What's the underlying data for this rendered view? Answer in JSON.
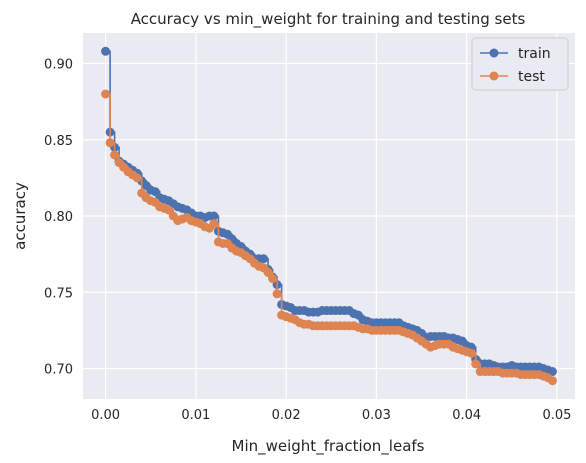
{
  "chart_data": {
    "type": "line",
    "title": "Accuracy vs min_weight for training and testing sets",
    "xlabel": "Min_weight_fraction_leafs",
    "ylabel": "accuracy",
    "xlim": [
      -0.0025,
      0.052
    ],
    "ylim": [
      0.68,
      0.92
    ],
    "x_ticks": [
      0.0,
      0.01,
      0.02,
      0.03,
      0.04,
      0.05
    ],
    "x_tick_labels": [
      "0.00",
      "0.01",
      "0.02",
      "0.03",
      "0.04",
      "0.05"
    ],
    "y_ticks": [
      0.7,
      0.75,
      0.8,
      0.85,
      0.9
    ],
    "y_tick_labels": [
      "0.70",
      "0.75",
      "0.80",
      "0.85",
      "0.90"
    ],
    "grid": true,
    "legend_position": "top-right",
    "style": "steps-post with circle markers",
    "colors": {
      "train": "#4c72b0",
      "test": "#dd8452",
      "background": "#eaeaf2",
      "grid": "#ffffff"
    },
    "x": [
      0.0,
      0.0005,
      0.001,
      0.0015,
      0.002,
      0.0025,
      0.003,
      0.0035,
      0.004,
      0.0045,
      0.005,
      0.0055,
      0.006,
      0.0065,
      0.007,
      0.0075,
      0.008,
      0.0085,
      0.009,
      0.0095,
      0.01,
      0.0105,
      0.011,
      0.0115,
      0.012,
      0.0125,
      0.013,
      0.0135,
      0.014,
      0.0145,
      0.015,
      0.0155,
      0.016,
      0.0165,
      0.017,
      0.0175,
      0.018,
      0.0185,
      0.019,
      0.0195,
      0.02,
      0.0205,
      0.021,
      0.0215,
      0.022,
      0.0225,
      0.023,
      0.0235,
      0.024,
      0.0245,
      0.025,
      0.0255,
      0.026,
      0.0265,
      0.027,
      0.0275,
      0.028,
      0.0285,
      0.029,
      0.0295,
      0.03,
      0.0305,
      0.031,
      0.0315,
      0.032,
      0.0325,
      0.033,
      0.0335,
      0.034,
      0.0345,
      0.035,
      0.0355,
      0.036,
      0.0365,
      0.037,
      0.0375,
      0.038,
      0.0385,
      0.039,
      0.0395,
      0.04,
      0.0405,
      0.041,
      0.0415,
      0.042,
      0.0425,
      0.043,
      0.0435,
      0.044,
      0.0445,
      0.045,
      0.0455,
      0.046,
      0.0465,
      0.047,
      0.0475,
      0.048,
      0.0485,
      0.049,
      0.0495
    ],
    "series": [
      {
        "name": "train",
        "values": [
          0.908,
          0.855,
          0.845,
          0.836,
          0.834,
          0.832,
          0.83,
          0.828,
          0.823,
          0.82,
          0.817,
          0.816,
          0.812,
          0.811,
          0.81,
          0.808,
          0.806,
          0.805,
          0.804,
          0.802,
          0.8,
          0.8,
          0.799,
          0.8,
          0.8,
          0.79,
          0.789,
          0.788,
          0.785,
          0.782,
          0.78,
          0.777,
          0.775,
          0.772,
          0.772,
          0.772,
          0.765,
          0.76,
          0.755,
          0.742,
          0.741,
          0.74,
          0.738,
          0.738,
          0.738,
          0.737,
          0.737,
          0.737,
          0.738,
          0.738,
          0.738,
          0.738,
          0.738,
          0.738,
          0.738,
          0.736,
          0.735,
          0.732,
          0.731,
          0.73,
          0.73,
          0.73,
          0.73,
          0.73,
          0.73,
          0.73,
          0.728,
          0.727,
          0.726,
          0.725,
          0.723,
          0.72,
          0.721,
          0.721,
          0.721,
          0.721,
          0.72,
          0.72,
          0.719,
          0.718,
          0.715,
          0.714,
          0.706,
          0.703,
          0.703,
          0.703,
          0.702,
          0.701,
          0.701,
          0.701,
          0.702,
          0.701,
          0.701,
          0.701,
          0.701,
          0.701,
          0.701,
          0.7,
          0.699,
          0.698
        ]
      },
      {
        "name": "test",
        "values": [
          0.88,
          0.848,
          0.84,
          0.835,
          0.832,
          0.829,
          0.827,
          0.825,
          0.815,
          0.812,
          0.81,
          0.809,
          0.806,
          0.805,
          0.804,
          0.8,
          0.797,
          0.798,
          0.799,
          0.797,
          0.796,
          0.795,
          0.793,
          0.792,
          0.795,
          0.783,
          0.782,
          0.782,
          0.779,
          0.777,
          0.776,
          0.774,
          0.772,
          0.769,
          0.767,
          0.766,
          0.763,
          0.759,
          0.749,
          0.735,
          0.734,
          0.733,
          0.732,
          0.73,
          0.729,
          0.729,
          0.728,
          0.728,
          0.728,
          0.728,
          0.728,
          0.728,
          0.728,
          0.728,
          0.728,
          0.728,
          0.727,
          0.726,
          0.726,
          0.725,
          0.725,
          0.725,
          0.725,
          0.725,
          0.725,
          0.725,
          0.724,
          0.723,
          0.722,
          0.72,
          0.718,
          0.716,
          0.714,
          0.715,
          0.716,
          0.716,
          0.716,
          0.714,
          0.713,
          0.712,
          0.711,
          0.71,
          0.703,
          0.698,
          0.698,
          0.698,
          0.698,
          0.698,
          0.697,
          0.697,
          0.697,
          0.697,
          0.696,
          0.696,
          0.696,
          0.696,
          0.696,
          0.695,
          0.694,
          0.692
        ]
      }
    ]
  }
}
